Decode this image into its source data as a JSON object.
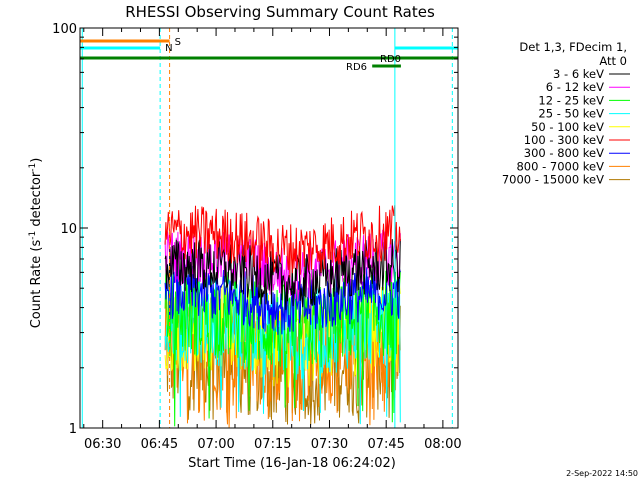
{
  "chart_data": {
    "type": "line",
    "title": "RHESSI Observing Summary Count Rates",
    "xlabel": "Start Time (16-Jan-18 06:24:02)",
    "ylabel_main": "Count Rate (s",
    "ylabel_sup1": "-1",
    "ylabel_mid": " detector",
    "ylabel_sup2": "-1",
    "ylabel_end": ")",
    "yscale": "log",
    "ylim": [
      1,
      100
    ],
    "xlim_min": [
      384,
      484
    ],
    "x_unit": "minutes after 00:00 UT",
    "x_ticks": [
      {
        "label": "06:30",
        "min": 390
      },
      {
        "label": "06:45",
        "min": 405
      },
      {
        "label": "07:00",
        "min": 420
      },
      {
        "label": "07:15",
        "min": 435
      },
      {
        "label": "07:30",
        "min": 450
      },
      {
        "label": "07:45",
        "min": 465
      },
      {
        "label": "08:00",
        "min": 480
      }
    ],
    "y_ticks": [
      {
        "label": "1",
        "value": 1
      },
      {
        "label": "10",
        "value": 10
      },
      {
        "label": "100",
        "value": 100
      }
    ],
    "legend_header": [
      "Det 1,3, FDecim 1,",
      "Att 0"
    ],
    "series": [
      {
        "name": "3 - 6 keV",
        "color": "#000000",
        "level": 6.5
      },
      {
        "name": "6 - 12 keV",
        "color": "#ff00ff",
        "level": 7.2
      },
      {
        "name": "12 - 25 keV",
        "color": "#00ff00",
        "level": 3.8
      },
      {
        "name": "25 - 50 keV",
        "color": "#00ffff",
        "level": 3.5
      },
      {
        "name": "50 - 100 keV",
        "color": "#ffff00",
        "level": 3.2
      },
      {
        "name": "100 - 300 keV",
        "color": "#ff0000",
        "level": 9.5
      },
      {
        "name": "300 - 800 keV",
        "color": "#0000ff",
        "level": 4.8
      },
      {
        "name": "800 - 7000 keV",
        "color": "#ff8000",
        "level": 2.8
      },
      {
        "name": "7000 - 15000 keV",
        "color": "#b07800",
        "level": 2.3
      }
    ],
    "data_start_min": 406.5,
    "data_end_min": 468.8,
    "markers": {
      "saa": {
        "label": "S",
        "color": "#ff8000",
        "start": 384,
        "end": 407.7
      },
      "night": {
        "label": "N",
        "color": "#00ffff",
        "segments": [
          [
            384,
            405.2
          ],
          [
            467.3,
            484
          ]
        ]
      },
      "rd0": {
        "label": "RD0",
        "color": "#008000"
      },
      "rd6": {
        "label": "RD6",
        "color": "#008000"
      },
      "vlines": [
        {
          "min": 384.6,
          "color": "#00ffff",
          "dash": false
        },
        {
          "min": 405.2,
          "color": "#00ffff",
          "dash": true
        },
        {
          "min": 407.7,
          "color": "#ff8000",
          "dash": true
        },
        {
          "min": 467.3,
          "color": "#00ffff",
          "dash": false
        },
        {
          "min": 482.5,
          "color": "#00ffff",
          "dash": true
        }
      ]
    }
  },
  "footer_date": "2-Sep-2022 14:50"
}
